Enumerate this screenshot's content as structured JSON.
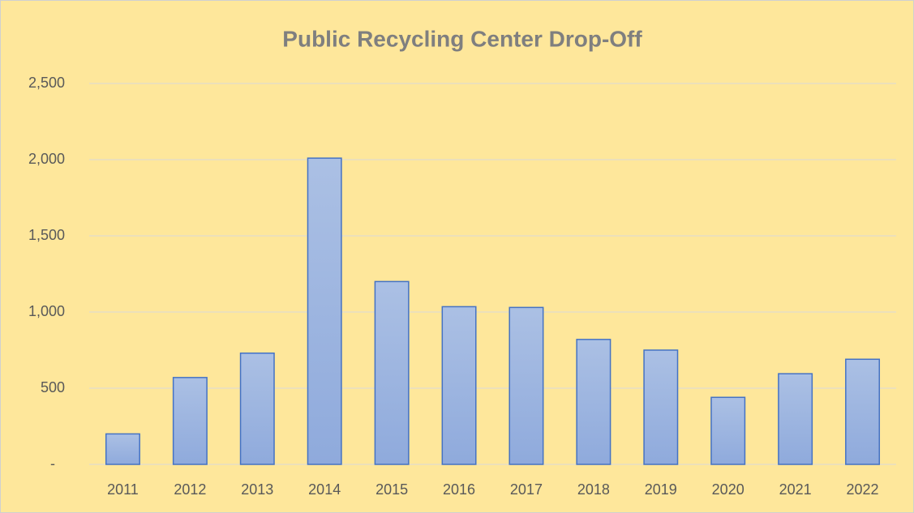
{
  "chart_data": {
    "type": "bar",
    "title": "Public Recycling Center Drop-Off",
    "categories": [
      "2011",
      "2012",
      "2013",
      "2014",
      "2015",
      "2016",
      "2017",
      "2018",
      "2019",
      "2020",
      "2021",
      "2022"
    ],
    "values": [
      200,
      570,
      730,
      2010,
      1200,
      1035,
      1030,
      820,
      750,
      440,
      595,
      690
    ],
    "color": "#4472c4",
    "ylim": [
      0,
      2500
    ],
    "yticks": [
      {
        "value": 0,
        "label": "-"
      },
      500,
      {
        "value": 1000,
        "label": "1,000"
      },
      {
        "value": 1500,
        "label": "1,500"
      },
      {
        "value": 2000,
        "label": "2,000"
      },
      {
        "value": 2500,
        "label": "2,500"
      }
    ],
    "grid": true
  }
}
